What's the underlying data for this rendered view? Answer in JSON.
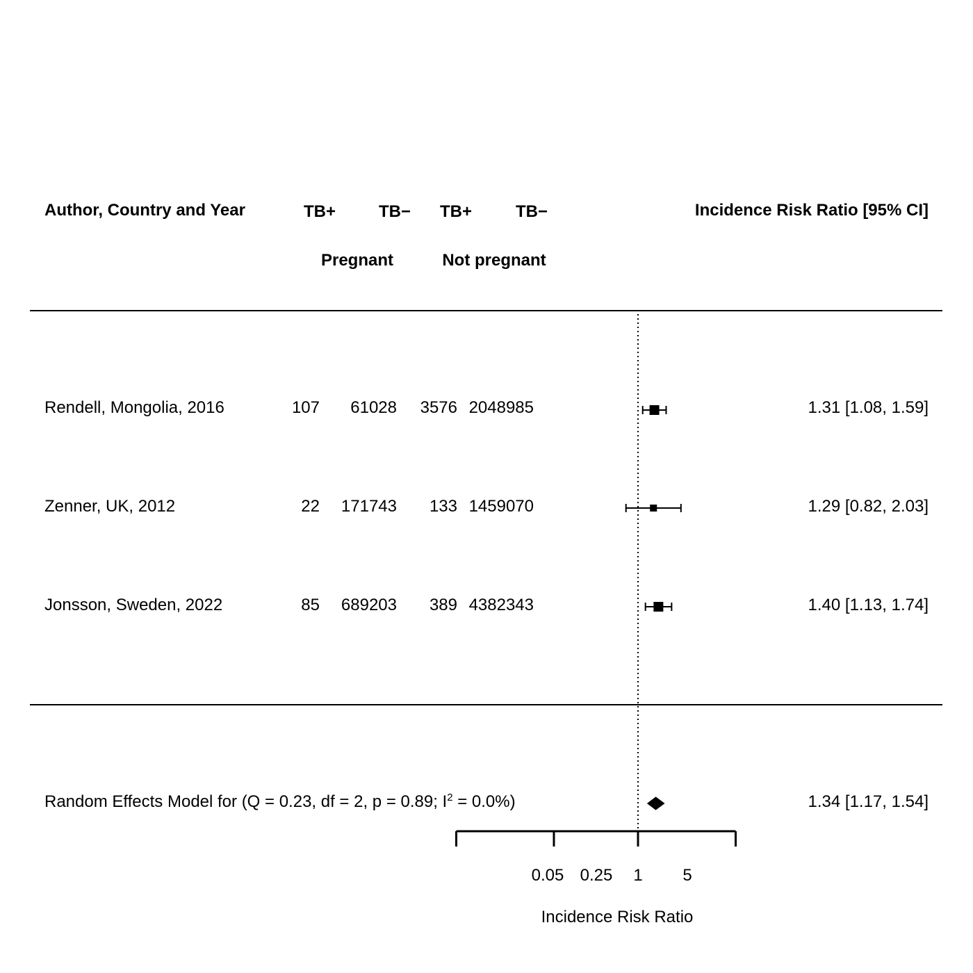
{
  "header": {
    "study_col": "Author, Country and Year",
    "col1": "TB+",
    "col2": "TB−",
    "col3": "TB+",
    "col4": "TB−",
    "group1": "Pregnant",
    "group2": "Not pregnant",
    "effect_col": "Incidence Risk Ratio [95%  CI]"
  },
  "summary": {
    "label_prefix": "Random Effects Model for (Q = 0.23, df = 2, p = 0.89; I",
    "label_sup": "2",
    "label_suffix": " = 0.0%)",
    "estimate_text": "1.34 [1.17, 1.54]"
  },
  "colors": {
    "ink": "#000000",
    "background": "#ffffff"
  },
  "chart_data": {
    "type": "forest",
    "xlabel": "Incidence Risk Ratio",
    "x_scale": "log",
    "ticks": [
      "0.05",
      "0.25",
      "1",
      "5"
    ],
    "tick_values": [
      0.05,
      0.25,
      1,
      5
    ],
    "reference_line": 1,
    "studies": [
      {
        "name": "Rendell, Mongolia, 2016",
        "tb_pos_pregnant": "107",
        "tb_neg_pregnant": "61028",
        "tb_pos_not_pregnant": "3576",
        "tb_neg_not_pregnant": "2048985",
        "estimate": 1.31,
        "ci_low": 1.08,
        "ci_high": 1.59,
        "text": "1.31 [1.08, 1.59]"
      },
      {
        "name": "Zenner, UK, 2012",
        "tb_pos_pregnant": "22",
        "tb_neg_pregnant": "171743",
        "tb_pos_not_pregnant": "133",
        "tb_neg_not_pregnant": "1459070",
        "estimate": 1.29,
        "ci_low": 0.82,
        "ci_high": 2.03,
        "text": "1.29 [0.82, 2.03]"
      },
      {
        "name": "Jonsson, Sweden, 2022",
        "tb_pos_pregnant": "85",
        "tb_neg_pregnant": "689203",
        "tb_pos_not_pregnant": "389",
        "tb_neg_not_pregnant": "4382343",
        "estimate": 1.4,
        "ci_low": 1.13,
        "ci_high": 1.74,
        "text": "1.40 [1.13, 1.74]"
      }
    ],
    "pooled": {
      "estimate": 1.34,
      "ci_low": 1.17,
      "ci_high": 1.54
    }
  }
}
